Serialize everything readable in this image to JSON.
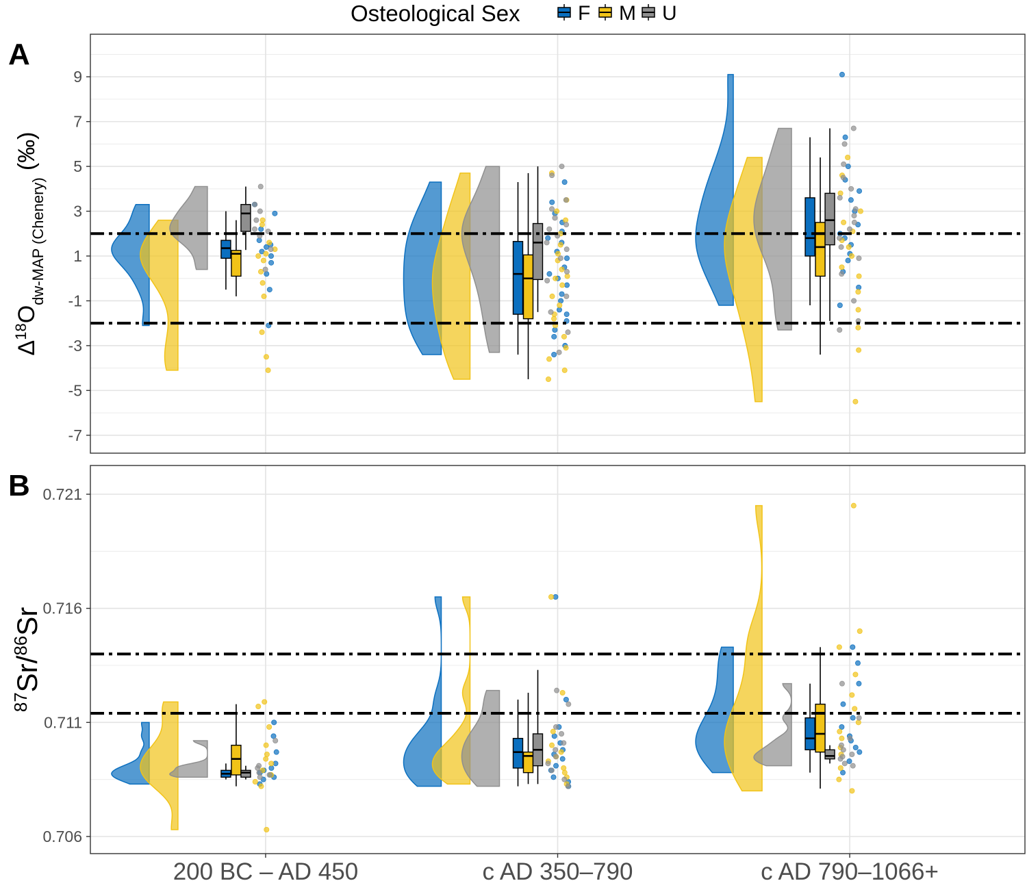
{
  "chart_data": [
    {
      "type": "raincloud",
      "panel_label": "A",
      "legend_title": "Osteological Sex",
      "ylabel_parts": [
        "Δ",
        "18",
        "O",
        "dw-MAP (Chenery)",
        "(‰)"
      ],
      "categories": [
        null,
        null,
        null
      ],
      "ylim": [
        -7.8,
        10.9
      ],
      "yticks": [
        -7,
        -5,
        -3,
        -1,
        1,
        3,
        5,
        7,
        9
      ],
      "grid": true,
      "hlines": [
        2,
        -2
      ],
      "series": [
        {
          "name": "F",
          "color": "#0b6fbf",
          "box": [
            [
              -0.5,
              0.9,
              1.35,
              1.7,
              3.0
            ],
            [
              -3.4,
              -1.6,
              0.2,
              1.65,
              4.3
            ],
            [
              -1.2,
              1.0,
              1.8,
              3.6,
              6.3
            ]
          ],
          "points": [
            [
              3.3,
              2.9,
              2.2,
              1.7,
              1.5,
              1.4,
              1.2,
              1.0,
              0.7,
              0.2,
              -0.5,
              -2.1
            ],
            [
              4.3,
              3.4,
              2.9,
              2.5,
              2.1,
              1.8,
              1.6,
              1.2,
              0.9,
              0.5,
              0.2,
              0.0,
              -0.3,
              -0.7,
              -1.0,
              -1.4,
              -1.6,
              -1.9,
              -2.3,
              -2.6,
              -3.0,
              -3.4
            ],
            [
              9.1,
              6.3,
              5.0,
              4.4,
              3.9,
              3.5,
              3.0,
              2.4,
              2.0,
              1.8,
              1.5,
              1.1,
              0.8,
              0.3,
              -0.4,
              -1.2
            ]
          ]
        },
        {
          "name": "M",
          "color": "#f1c318",
          "box": [
            [
              -0.8,
              0.1,
              1.1,
              1.25,
              2.6
            ],
            [
              -4.5,
              -1.8,
              0.0,
              1.05,
              4.7
            ],
            [
              -3.4,
              0.1,
              1.4,
              2.5,
              5.4
            ]
          ],
          "points": [
            [
              2.6,
              2.4,
              1.6,
              1.3,
              1.1,
              1.0,
              0.8,
              0.3,
              -0.2,
              -0.8,
              -2.4,
              -3.5,
              -4.1
            ],
            [
              4.7,
              3.5,
              3.0,
              2.6,
              2.0,
              1.5,
              1.1,
              0.8,
              0.4,
              0.1,
              0.0,
              -0.3,
              -0.8,
              -1.2,
              -1.6,
              -1.8,
              -2.1,
              -2.6,
              -3.1,
              -3.6,
              -4.1,
              -4.5
            ],
            [
              5.4,
              4.6,
              3.8,
              3.0,
              2.5,
              2.1,
              1.7,
              1.4,
              1.0,
              0.5,
              0.1,
              -0.6,
              -1.4,
              -2.2,
              -3.2,
              -5.5
            ]
          ]
        },
        {
          "name": "U",
          "color": "#8f8f8f",
          "box": [
            [
              1.27,
              2.1,
              2.9,
              3.3,
              4.1
            ],
            [
              -1.5,
              -0.05,
              1.6,
              2.45,
              5.0
            ],
            [
              -1.9,
              1.5,
              2.6,
              3.8,
              6.7
            ]
          ],
          "points": [
            [
              4.1,
              3.3,
              3.0,
              2.6,
              2.2,
              2.1,
              1.9,
              1.3,
              0.4
            ],
            [
              5.0,
              4.6,
              3.5,
              3.1,
              2.7,
              2.4,
              2.2,
              1.9,
              1.6,
              1.3,
              0.9,
              0.3,
              -0.1,
              -0.8,
              -1.5,
              -2.4,
              -3.3
            ],
            [
              6.7,
              6.0,
              5.1,
              4.5,
              4.0,
              3.6,
              3.1,
              2.8,
              2.5,
              2.2,
              1.8,
              1.4,
              0.9,
              0.2,
              -1.0,
              -1.9,
              -2.3
            ]
          ]
        }
      ]
    },
    {
      "type": "raincloud",
      "panel_label": "B",
      "ylabel_parts": [
        "87",
        "Sr/",
        "86",
        "Sr"
      ],
      "categories": [
        "200 BC – AD 450",
        "c AD 350–790",
        "c AD 790–1066+"
      ],
      "ylim": [
        0.70525,
        0.72226
      ],
      "yticks": [
        0.706,
        0.711,
        0.716,
        0.721
      ],
      "grid": true,
      "hlines": [
        0.714,
        0.7114
      ],
      "series": [
        {
          "name": "F",
          "color": "#0b6fbf",
          "box": [
            [
              0.7085,
              0.7086,
              0.70875,
              0.7089,
              0.7092
            ],
            [
              0.7082,
              0.709,
              0.7097,
              0.7103,
              0.712
            ],
            [
              0.7088,
              0.7098,
              0.7103,
              0.7112,
              0.7127
            ]
          ],
          "points": [
            [
              0.711,
              0.7104,
              0.7097,
              0.7092,
              0.709,
              0.7089,
              0.7088,
              0.7087,
              0.7086,
              0.7085,
              0.7083
            ],
            [
              0.7165,
              0.712,
              0.7108,
              0.7104,
              0.7101,
              0.7098,
              0.7096,
              0.7094,
              0.7091,
              0.7089,
              0.7086,
              0.7084,
              0.7082
            ],
            [
              0.7143,
              0.7136,
              0.7127,
              0.7118,
              0.7112,
              0.7108,
              0.7104,
              0.7102,
              0.7099,
              0.7097,
              0.7093,
              0.7088
            ]
          ]
        },
        {
          "name": "M",
          "color": "#f1c318",
          "box": [
            [
              0.7082,
              0.7087,
              0.7094,
              0.71,
              0.7118
            ],
            [
              0.7083,
              0.7088,
              0.70953,
              0.7097,
              0.7123
            ],
            [
              0.7081,
              0.7097,
              0.7105,
              0.7118,
              0.7143
            ]
          ],
          "points": [
            [
              0.7119,
              0.7117,
              0.7108,
              0.71,
              0.7096,
              0.7094,
              0.7092,
              0.7089,
              0.7087,
              0.7084,
              0.7082,
              0.7063
            ],
            [
              0.7165,
              0.7123,
              0.7106,
              0.71,
              0.7097,
              0.7095,
              0.7093,
              0.709,
              0.7088,
              0.7086,
              0.7083
            ],
            [
              0.7205,
              0.715,
              0.7143,
              0.7131,
              0.7122,
              0.7116,
              0.711,
              0.7106,
              0.7103,
              0.7099,
              0.7096,
              0.709,
              0.7085,
              0.708
            ]
          ]
        },
        {
          "name": "U",
          "color": "#8f8f8f",
          "box": [
            [
              0.7085,
              0.7086,
              0.7088,
              0.7089,
              0.7091
            ],
            [
              0.7083,
              0.7091,
              0.7098,
              0.7105,
              0.7133
            ],
            [
              0.7092,
              0.7094,
              0.70953,
              0.7098,
              0.71
            ]
          ],
          "points": [
            [
              0.7102,
              0.7091,
              0.709,
              0.7088,
              0.7087,
              0.7086
            ],
            [
              0.7124,
              0.7118,
              0.7108,
              0.7105,
              0.7101,
              0.7098,
              0.7095,
              0.7092,
              0.7089,
              0.7085,
              0.7082
            ],
            [
              0.7127,
              0.7112,
              0.7103,
              0.71,
              0.7098,
              0.7096,
              0.7095,
              0.7094,
              0.7092,
              0.7091
            ]
          ]
        }
      ]
    }
  ]
}
